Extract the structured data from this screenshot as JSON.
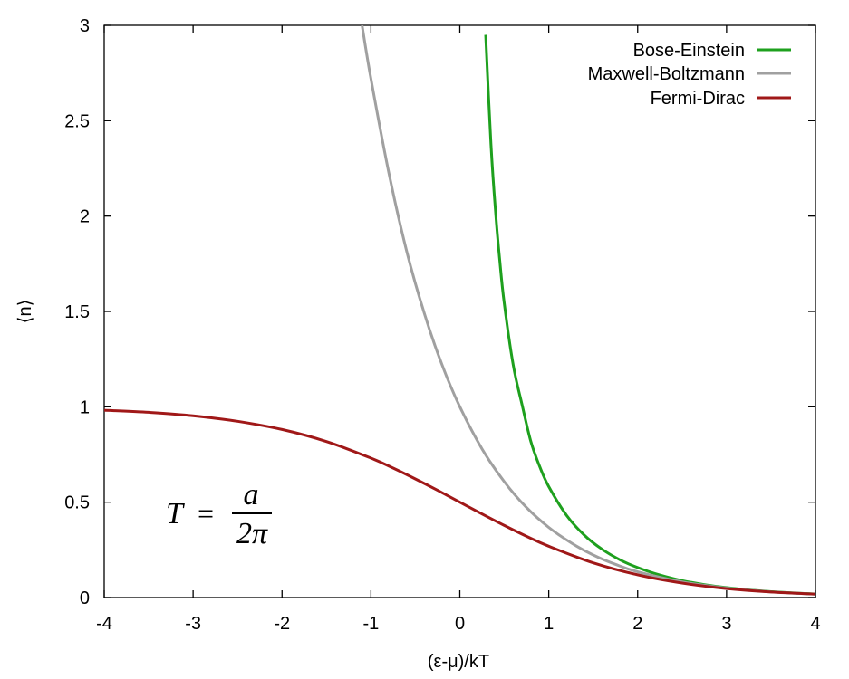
{
  "chart_data": {
    "type": "line",
    "title": "",
    "xlabel": "(ε-μ)/kT",
    "ylabel": "⟨n⟩",
    "xlim": [
      -4,
      4
    ],
    "ylim": [
      0,
      3
    ],
    "xticks": [
      -4,
      -3,
      -2,
      -1,
      0,
      1,
      2,
      3,
      4
    ],
    "xtick_labels": [
      "-4",
      "-3",
      "-2",
      "-1",
      "0",
      "1",
      "2",
      "3",
      "4"
    ],
    "yticks": [
      0,
      0.5,
      1,
      1.5,
      2,
      2.5,
      3
    ],
    "ytick_labels": [
      "0",
      "0.5",
      "1",
      "1.5",
      "2",
      "2.5",
      "3"
    ],
    "grid": false,
    "legend_position": "top-right",
    "series": [
      {
        "name": "Bose-Einstein",
        "color": "#1ea01e",
        "x": [
          0.29,
          0.35,
          0.4,
          0.45,
          0.5,
          0.6,
          0.7,
          0.8,
          0.9,
          1.0,
          1.2,
          1.4,
          1.6,
          1.8,
          2.0,
          2.25,
          2.5,
          2.75,
          3.0,
          3.25,
          3.5,
          3.75,
          4.0
        ],
        "y": [
          2.95,
          2.38,
          2.03,
          1.76,
          1.54,
          1.22,
          1.01,
          0.816,
          0.685,
          0.582,
          0.431,
          0.327,
          0.253,
          0.198,
          0.157,
          0.118,
          0.089,
          0.068,
          0.052,
          0.04,
          0.031,
          0.024,
          0.019
        ]
      },
      {
        "name": "Maxwell-Boltzmann",
        "color": "#a0a0a0",
        "x": [
          -1.1,
          -1.0,
          -0.8,
          -0.6,
          -0.4,
          -0.2,
          0.0,
          0.25,
          0.5,
          0.75,
          1.0,
          1.25,
          1.5,
          1.75,
          2.0,
          2.5,
          3.0,
          3.5,
          4.0
        ],
        "y": [
          3.0,
          2.72,
          2.23,
          1.82,
          1.49,
          1.22,
          1.0,
          0.779,
          0.607,
          0.472,
          0.368,
          0.287,
          0.223,
          0.174,
          0.135,
          0.082,
          0.05,
          0.03,
          0.018
        ]
      },
      {
        "name": "Fermi-Dirac",
        "color": "#a01818",
        "x": [
          -4,
          -3.5,
          -3,
          -2.5,
          -2,
          -1.5,
          -1,
          -0.75,
          -0.5,
          -0.25,
          0,
          0.25,
          0.5,
          0.75,
          1,
          1.5,
          2,
          2.5,
          3,
          3.5,
          4
        ],
        "y": [
          0.982,
          0.971,
          0.953,
          0.924,
          0.881,
          0.818,
          0.731,
          0.679,
          0.622,
          0.562,
          0.5,
          0.438,
          0.378,
          0.321,
          0.269,
          0.182,
          0.119,
          0.076,
          0.047,
          0.029,
          0.018
        ]
      }
    ],
    "annotation": {
      "lhs": "T",
      "equals": "=",
      "numerator": "a",
      "denominator": "2π"
    }
  }
}
